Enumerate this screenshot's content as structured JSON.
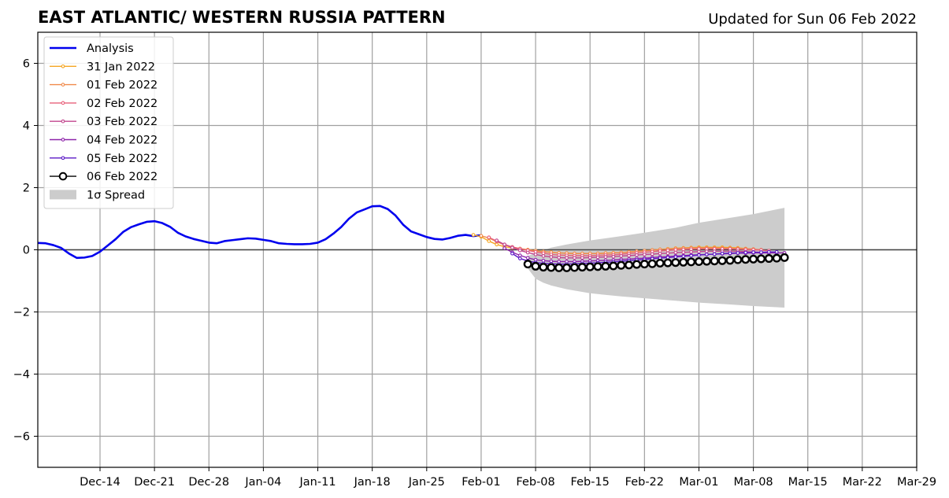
{
  "chart_data": {
    "type": "line",
    "title": "EAST ATLANTIC/ WESTERN RUSSIA PATTERN",
    "subtitle": "Updated for Sun 06 Feb 2022",
    "x_axis": {
      "type": "date",
      "range": [
        "2021-12-06",
        "2022-03-29"
      ],
      "tick_dates": [
        "2021-12-14",
        "2021-12-21",
        "2021-12-28",
        "2022-01-04",
        "2022-01-11",
        "2022-01-18",
        "2022-01-25",
        "2022-02-01",
        "2022-02-08",
        "2022-02-15",
        "2022-02-22",
        "2022-03-01",
        "2022-03-08",
        "2022-03-15",
        "2022-03-22",
        "2022-03-29"
      ],
      "tick_labels": [
        "Dec-14",
        "Dec-21",
        "Dec-28",
        "Jan-04",
        "Jan-11",
        "Jan-18",
        "Jan-25",
        "Feb-01",
        "Feb-08",
        "Feb-15",
        "Feb-22",
        "Mar-01",
        "Mar-08",
        "Mar-15",
        "Mar-22",
        "Mar-29"
      ]
    },
    "y_axis": {
      "range": [
        -7,
        7
      ],
      "tick_values": [
        -6,
        -4,
        -2,
        0,
        2,
        4,
        6
      ],
      "tick_labels": [
        "−6",
        "−4",
        "−2",
        "0",
        "2",
        "4",
        "6"
      ]
    },
    "grid": true,
    "legend_position": "top-left",
    "analysis": {
      "name": "Analysis",
      "color": "#0000ee",
      "x": [
        "2021-12-06",
        "2021-12-07",
        "2021-12-08",
        "2021-12-09",
        "2021-12-10",
        "2021-12-11",
        "2021-12-12",
        "2021-12-13",
        "2021-12-14",
        "2021-12-15",
        "2021-12-16",
        "2021-12-17",
        "2021-12-18",
        "2021-12-19",
        "2021-12-20",
        "2021-12-21",
        "2021-12-22",
        "2021-12-23",
        "2021-12-24",
        "2021-12-25",
        "2021-12-26",
        "2021-12-27",
        "2021-12-28",
        "2021-12-29",
        "2021-12-30",
        "2021-12-31",
        "2022-01-01",
        "2022-01-02",
        "2022-01-03",
        "2022-01-04",
        "2022-01-05",
        "2022-01-06",
        "2022-01-07",
        "2022-01-08",
        "2022-01-09",
        "2022-01-10",
        "2022-01-11",
        "2022-01-12",
        "2022-01-13",
        "2022-01-14",
        "2022-01-15",
        "2022-01-16",
        "2022-01-17",
        "2022-01-18",
        "2022-01-19",
        "2022-01-20",
        "2022-01-21",
        "2022-01-22",
        "2022-01-23",
        "2022-01-24",
        "2022-01-25",
        "2022-01-26",
        "2022-01-27",
        "2022-01-28",
        "2022-01-29",
        "2022-01-30",
        "2022-01-31",
        "2022-02-01"
      ],
      "y": [
        0.22,
        0.21,
        0.15,
        0.06,
        -0.12,
        -0.26,
        -0.25,
        -0.2,
        -0.06,
        0.14,
        0.34,
        0.58,
        0.73,
        0.82,
        0.9,
        0.92,
        0.86,
        0.74,
        0.55,
        0.43,
        0.35,
        0.29,
        0.23,
        0.21,
        0.28,
        0.31,
        0.34,
        0.37,
        0.36,
        0.32,
        0.28,
        0.21,
        0.19,
        0.18,
        0.18,
        0.19,
        0.23,
        0.34,
        0.52,
        0.73,
        1.0,
        1.2,
        1.3,
        1.4,
        1.41,
        1.31,
        1.1,
        0.8,
        0.59,
        0.5,
        0.41,
        0.35,
        0.33,
        0.38,
        0.45,
        0.48,
        0.44,
        0.47
      ]
    },
    "spread": {
      "name": "1σ Spread",
      "color": "#cccccc",
      "x": [
        "2022-02-07",
        "2022-02-08",
        "2022-02-09",
        "2022-02-10",
        "2022-02-12",
        "2022-02-15",
        "2022-02-19",
        "2022-02-22",
        "2022-02-26",
        "2022-03-01",
        "2022-03-05",
        "2022-03-08",
        "2022-03-12"
      ],
      "upper": [
        -0.2,
        -0.1,
        -0.02,
        0.07,
        0.17,
        0.3,
        0.44,
        0.55,
        0.71,
        0.87,
        1.03,
        1.15,
        1.35
      ],
      "lower": [
        -0.6,
        -0.93,
        -1.06,
        -1.15,
        -1.27,
        -1.4,
        -1.5,
        -1.56,
        -1.64,
        -1.7,
        -1.76,
        -1.81,
        -1.86
      ]
    },
    "forecasts": [
      {
        "name": "31 Jan 2022",
        "color": "#f5a623",
        "x": [
          "2022-01-31",
          "2022-02-01",
          "2022-02-02",
          "2022-02-03",
          "2022-02-04",
          "2022-02-05",
          "2022-02-06",
          "2022-02-07",
          "2022-02-08",
          "2022-02-09",
          "2022-02-10",
          "2022-02-11",
          "2022-02-12",
          "2022-02-13",
          "2022-02-14",
          "2022-02-15",
          "2022-02-16",
          "2022-02-17",
          "2022-02-18",
          "2022-02-19",
          "2022-02-20",
          "2022-02-21",
          "2022-02-22",
          "2022-02-23",
          "2022-02-24",
          "2022-02-25",
          "2022-02-26",
          "2022-02-27",
          "2022-02-28",
          "2022-03-01",
          "2022-03-02",
          "2022-03-03",
          "2022-03-04",
          "2022-03-05",
          "2022-03-06",
          "2022-03-07",
          "2022-03-08"
        ],
        "y": [
          0.48,
          0.42,
          0.28,
          0.17,
          0.1,
          0.06,
          0.03,
          0.0,
          -0.03,
          -0.06,
          -0.08,
          -0.1,
          -0.11,
          -0.12,
          -0.12,
          -0.12,
          -0.12,
          -0.11,
          -0.1,
          -0.09,
          -0.07,
          -0.05,
          -0.03,
          -0.01,
          0.01,
          0.03,
          0.05,
          0.06,
          0.07,
          0.08,
          0.08,
          0.08,
          0.08,
          0.07,
          0.06,
          0.04,
          0.02
        ]
      },
      {
        "name": "01 Feb 2022",
        "color": "#f08a4b",
        "x": [
          "2022-02-01",
          "2022-02-02",
          "2022-02-03",
          "2022-02-04",
          "2022-02-05",
          "2022-02-06",
          "2022-02-07",
          "2022-02-08",
          "2022-02-09",
          "2022-02-10",
          "2022-02-11",
          "2022-02-12",
          "2022-02-13",
          "2022-02-14",
          "2022-02-15",
          "2022-02-16",
          "2022-02-17",
          "2022-02-18",
          "2022-02-19",
          "2022-02-20",
          "2022-02-21",
          "2022-02-22",
          "2022-02-23",
          "2022-02-24",
          "2022-02-25",
          "2022-02-26",
          "2022-02-27",
          "2022-02-28",
          "2022-03-01",
          "2022-03-02",
          "2022-03-03",
          "2022-03-04",
          "2022-03-05",
          "2022-03-06",
          "2022-03-07",
          "2022-03-08",
          "2022-03-09"
        ],
        "y": [
          0.45,
          0.38,
          0.26,
          0.16,
          0.09,
          0.04,
          0.0,
          -0.03,
          -0.06,
          -0.08,
          -0.1,
          -0.11,
          -0.12,
          -0.12,
          -0.12,
          -0.12,
          -0.11,
          -0.1,
          -0.09,
          -0.07,
          -0.05,
          -0.03,
          -0.01,
          0.01,
          0.02,
          0.04,
          0.05,
          0.06,
          0.06,
          0.06,
          0.06,
          0.05,
          0.05,
          0.04,
          0.03,
          0.02,
          0.0
        ]
      },
      {
        "name": "02 Feb 2022",
        "color": "#e8607a",
        "x": [
          "2022-02-02",
          "2022-02-03",
          "2022-02-04",
          "2022-02-05",
          "2022-02-06",
          "2022-02-07",
          "2022-02-08",
          "2022-02-09",
          "2022-02-10",
          "2022-02-11",
          "2022-02-12",
          "2022-02-13",
          "2022-02-14",
          "2022-02-15",
          "2022-02-16",
          "2022-02-17",
          "2022-02-18",
          "2022-02-19",
          "2022-02-20",
          "2022-02-21",
          "2022-02-22",
          "2022-02-23",
          "2022-02-24",
          "2022-02-25",
          "2022-02-26",
          "2022-02-27",
          "2022-02-28",
          "2022-03-01",
          "2022-03-02",
          "2022-03-03",
          "2022-03-04",
          "2022-03-05",
          "2022-03-06",
          "2022-03-07",
          "2022-03-08",
          "2022-03-09",
          "2022-03-10"
        ],
        "y": [
          0.4,
          0.28,
          0.17,
          0.09,
          0.03,
          -0.02,
          -0.07,
          -0.11,
          -0.15,
          -0.17,
          -0.18,
          -0.19,
          -0.19,
          -0.19,
          -0.18,
          -0.17,
          -0.16,
          -0.14,
          -0.12,
          -0.1,
          -0.08,
          -0.06,
          -0.04,
          -0.02,
          0.0,
          0.01,
          0.02,
          0.03,
          0.03,
          0.03,
          0.03,
          0.03,
          0.02,
          0.01,
          0.0,
          -0.01,
          -0.03
        ]
      },
      {
        "name": "03 Feb 2022",
        "color": "#c2458e",
        "x": [
          "2022-02-03",
          "2022-02-04",
          "2022-02-05",
          "2022-02-06",
          "2022-02-07",
          "2022-02-08",
          "2022-02-09",
          "2022-02-10",
          "2022-02-11",
          "2022-02-12",
          "2022-02-13",
          "2022-02-14",
          "2022-02-15",
          "2022-02-16",
          "2022-02-17",
          "2022-02-18",
          "2022-02-19",
          "2022-02-20",
          "2022-02-21",
          "2022-02-22",
          "2022-02-23",
          "2022-02-24",
          "2022-02-25",
          "2022-02-26",
          "2022-02-27",
          "2022-02-28",
          "2022-03-01",
          "2022-03-02",
          "2022-03-03",
          "2022-03-04",
          "2022-03-05",
          "2022-03-06",
          "2022-03-07",
          "2022-03-08",
          "2022-03-09",
          "2022-03-10",
          "2022-03-11"
        ],
        "y": [
          0.3,
          0.17,
          0.07,
          -0.02,
          -0.09,
          -0.15,
          -0.2,
          -0.23,
          -0.25,
          -0.26,
          -0.26,
          -0.26,
          -0.25,
          -0.24,
          -0.23,
          -0.22,
          -0.2,
          -0.19,
          -0.17,
          -0.15,
          -0.14,
          -0.12,
          -0.11,
          -0.09,
          -0.08,
          -0.07,
          -0.06,
          -0.05,
          -0.05,
          -0.05,
          -0.05,
          -0.05,
          -0.06,
          -0.07,
          -0.08,
          -0.09,
          -0.1
        ]
      },
      {
        "name": "04 Feb 2022",
        "color": "#8e24aa",
        "x": [
          "2022-02-04",
          "2022-02-05",
          "2022-02-06",
          "2022-02-07",
          "2022-02-08",
          "2022-02-09",
          "2022-02-10",
          "2022-02-11",
          "2022-02-12",
          "2022-02-13",
          "2022-02-14",
          "2022-02-15",
          "2022-02-16",
          "2022-02-17",
          "2022-02-18",
          "2022-02-19",
          "2022-02-20",
          "2022-02-21",
          "2022-02-22",
          "2022-02-23",
          "2022-02-24",
          "2022-02-25",
          "2022-02-26",
          "2022-02-27",
          "2022-02-28",
          "2022-03-01",
          "2022-03-02",
          "2022-03-03",
          "2022-03-04",
          "2022-03-05",
          "2022-03-06",
          "2022-03-07",
          "2022-03-08",
          "2022-03-09",
          "2022-03-10",
          "2022-03-11",
          "2022-03-12"
        ],
        "y": [
          0.05,
          -0.08,
          -0.18,
          -0.26,
          -0.32,
          -0.35,
          -0.37,
          -0.38,
          -0.38,
          -0.38,
          -0.37,
          -0.36,
          -0.35,
          -0.34,
          -0.33,
          -0.31,
          -0.3,
          -0.28,
          -0.27,
          -0.25,
          -0.23,
          -0.22,
          -0.2,
          -0.19,
          -0.17,
          -0.16,
          -0.15,
          -0.14,
          -0.13,
          -0.12,
          -0.11,
          -0.11,
          -0.1,
          -0.1,
          -0.1,
          -0.1,
          -0.1
        ]
      },
      {
        "name": "05 Feb 2022",
        "color": "#5b19c6",
        "x": [
          "2022-02-05",
          "2022-02-06",
          "2022-02-07",
          "2022-02-08",
          "2022-02-09",
          "2022-02-10",
          "2022-02-11",
          "2022-02-12",
          "2022-02-13",
          "2022-02-14",
          "2022-02-15",
          "2022-02-16",
          "2022-02-17",
          "2022-02-18",
          "2022-02-19",
          "2022-02-20",
          "2022-02-21",
          "2022-02-22",
          "2022-02-23",
          "2022-02-24",
          "2022-02-25",
          "2022-02-26",
          "2022-02-27",
          "2022-02-28",
          "2022-03-01",
          "2022-03-02",
          "2022-03-03",
          "2022-03-04",
          "2022-03-05",
          "2022-03-06",
          "2022-03-07",
          "2022-03-08",
          "2022-03-09",
          "2022-03-10",
          "2022-03-11"
        ],
        "y": [
          -0.12,
          -0.28,
          -0.36,
          -0.41,
          -0.44,
          -0.45,
          -0.46,
          -0.46,
          -0.45,
          -0.44,
          -0.43,
          -0.42,
          -0.4,
          -0.39,
          -0.37,
          -0.35,
          -0.33,
          -0.31,
          -0.29,
          -0.27,
          -0.25,
          -0.23,
          -0.21,
          -0.19,
          -0.17,
          -0.15,
          -0.14,
          -0.12,
          -0.11,
          -0.1,
          -0.09,
          -0.08,
          -0.08,
          -0.07,
          -0.07
        ]
      },
      {
        "name": "06 Feb 2022",
        "color": "#000000",
        "x": [
          "2022-02-07",
          "2022-02-08",
          "2022-02-09",
          "2022-02-10",
          "2022-02-11",
          "2022-02-12",
          "2022-02-13",
          "2022-02-14",
          "2022-02-15",
          "2022-02-16",
          "2022-02-17",
          "2022-02-18",
          "2022-02-19",
          "2022-02-20",
          "2022-02-21",
          "2022-02-22",
          "2022-02-23",
          "2022-02-24",
          "2022-02-25",
          "2022-02-26",
          "2022-02-27",
          "2022-02-28",
          "2022-03-01",
          "2022-03-02",
          "2022-03-03",
          "2022-03-04",
          "2022-03-05",
          "2022-03-06",
          "2022-03-07",
          "2022-03-08",
          "2022-03-09",
          "2022-03-10",
          "2022-03-11",
          "2022-03-12"
        ],
        "y": [
          -0.46,
          -0.53,
          -0.56,
          -0.57,
          -0.58,
          -0.58,
          -0.57,
          -0.56,
          -0.55,
          -0.54,
          -0.53,
          -0.52,
          -0.5,
          -0.49,
          -0.47,
          -0.46,
          -0.45,
          -0.43,
          -0.42,
          -0.41,
          -0.4,
          -0.39,
          -0.38,
          -0.37,
          -0.36,
          -0.35,
          -0.34,
          -0.32,
          -0.31,
          -0.3,
          -0.29,
          -0.28,
          -0.27,
          -0.25
        ]
      }
    ]
  }
}
